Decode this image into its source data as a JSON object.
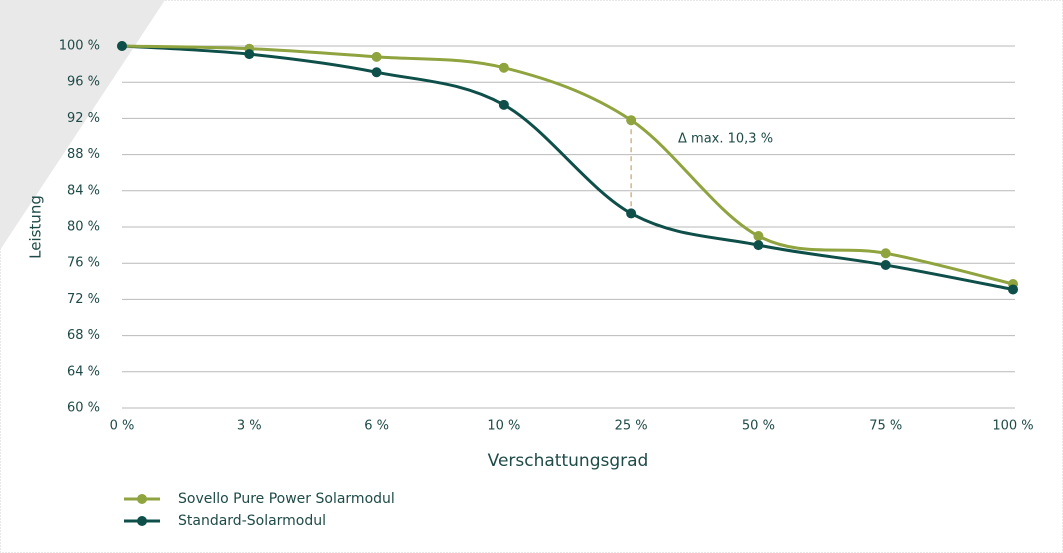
{
  "chart_data": {
    "type": "line",
    "y_label": "Leistung",
    "x_label": "Verschattungsgrad",
    "annotation": "Δ max. 10,3 %",
    "categories": [
      "0 %",
      "3 %",
      "6 %",
      "10 %",
      "25 %",
      "50 %",
      "75 %",
      "100 %"
    ],
    "series": [
      {
        "name": "Sovello Pure Power Solarmodul",
        "color": "#8fa33f",
        "values": [
          100,
          99.7,
          98.8,
          97.6,
          91.8,
          79,
          77.1,
          73.7
        ]
      },
      {
        "name": "Standard-Solarmodul",
        "color": "#0e4f4a",
        "values": [
          100,
          99.1,
          97.1,
          93.5,
          81.5,
          78,
          75.8,
          73.1
        ]
      }
    ],
    "ylim": [
      60,
      100
    ],
    "yticks": [
      {
        "value": 60,
        "label": "60 %"
      },
      {
        "value": 64,
        "label": "64 %"
      },
      {
        "value": 68,
        "label": "68 %"
      },
      {
        "value": 72,
        "label": "72 %"
      },
      {
        "value": 76,
        "label": "76 %"
      },
      {
        "value": 80,
        "label": "80 %"
      },
      {
        "value": 84,
        "label": "84 %"
      },
      {
        "value": 88,
        "label": "88 %"
      },
      {
        "value": 92,
        "label": "92 %"
      },
      {
        "value": 96,
        "label": "96 %"
      },
      {
        "value": 100,
        "label": "100 %"
      }
    ],
    "grid": true
  }
}
